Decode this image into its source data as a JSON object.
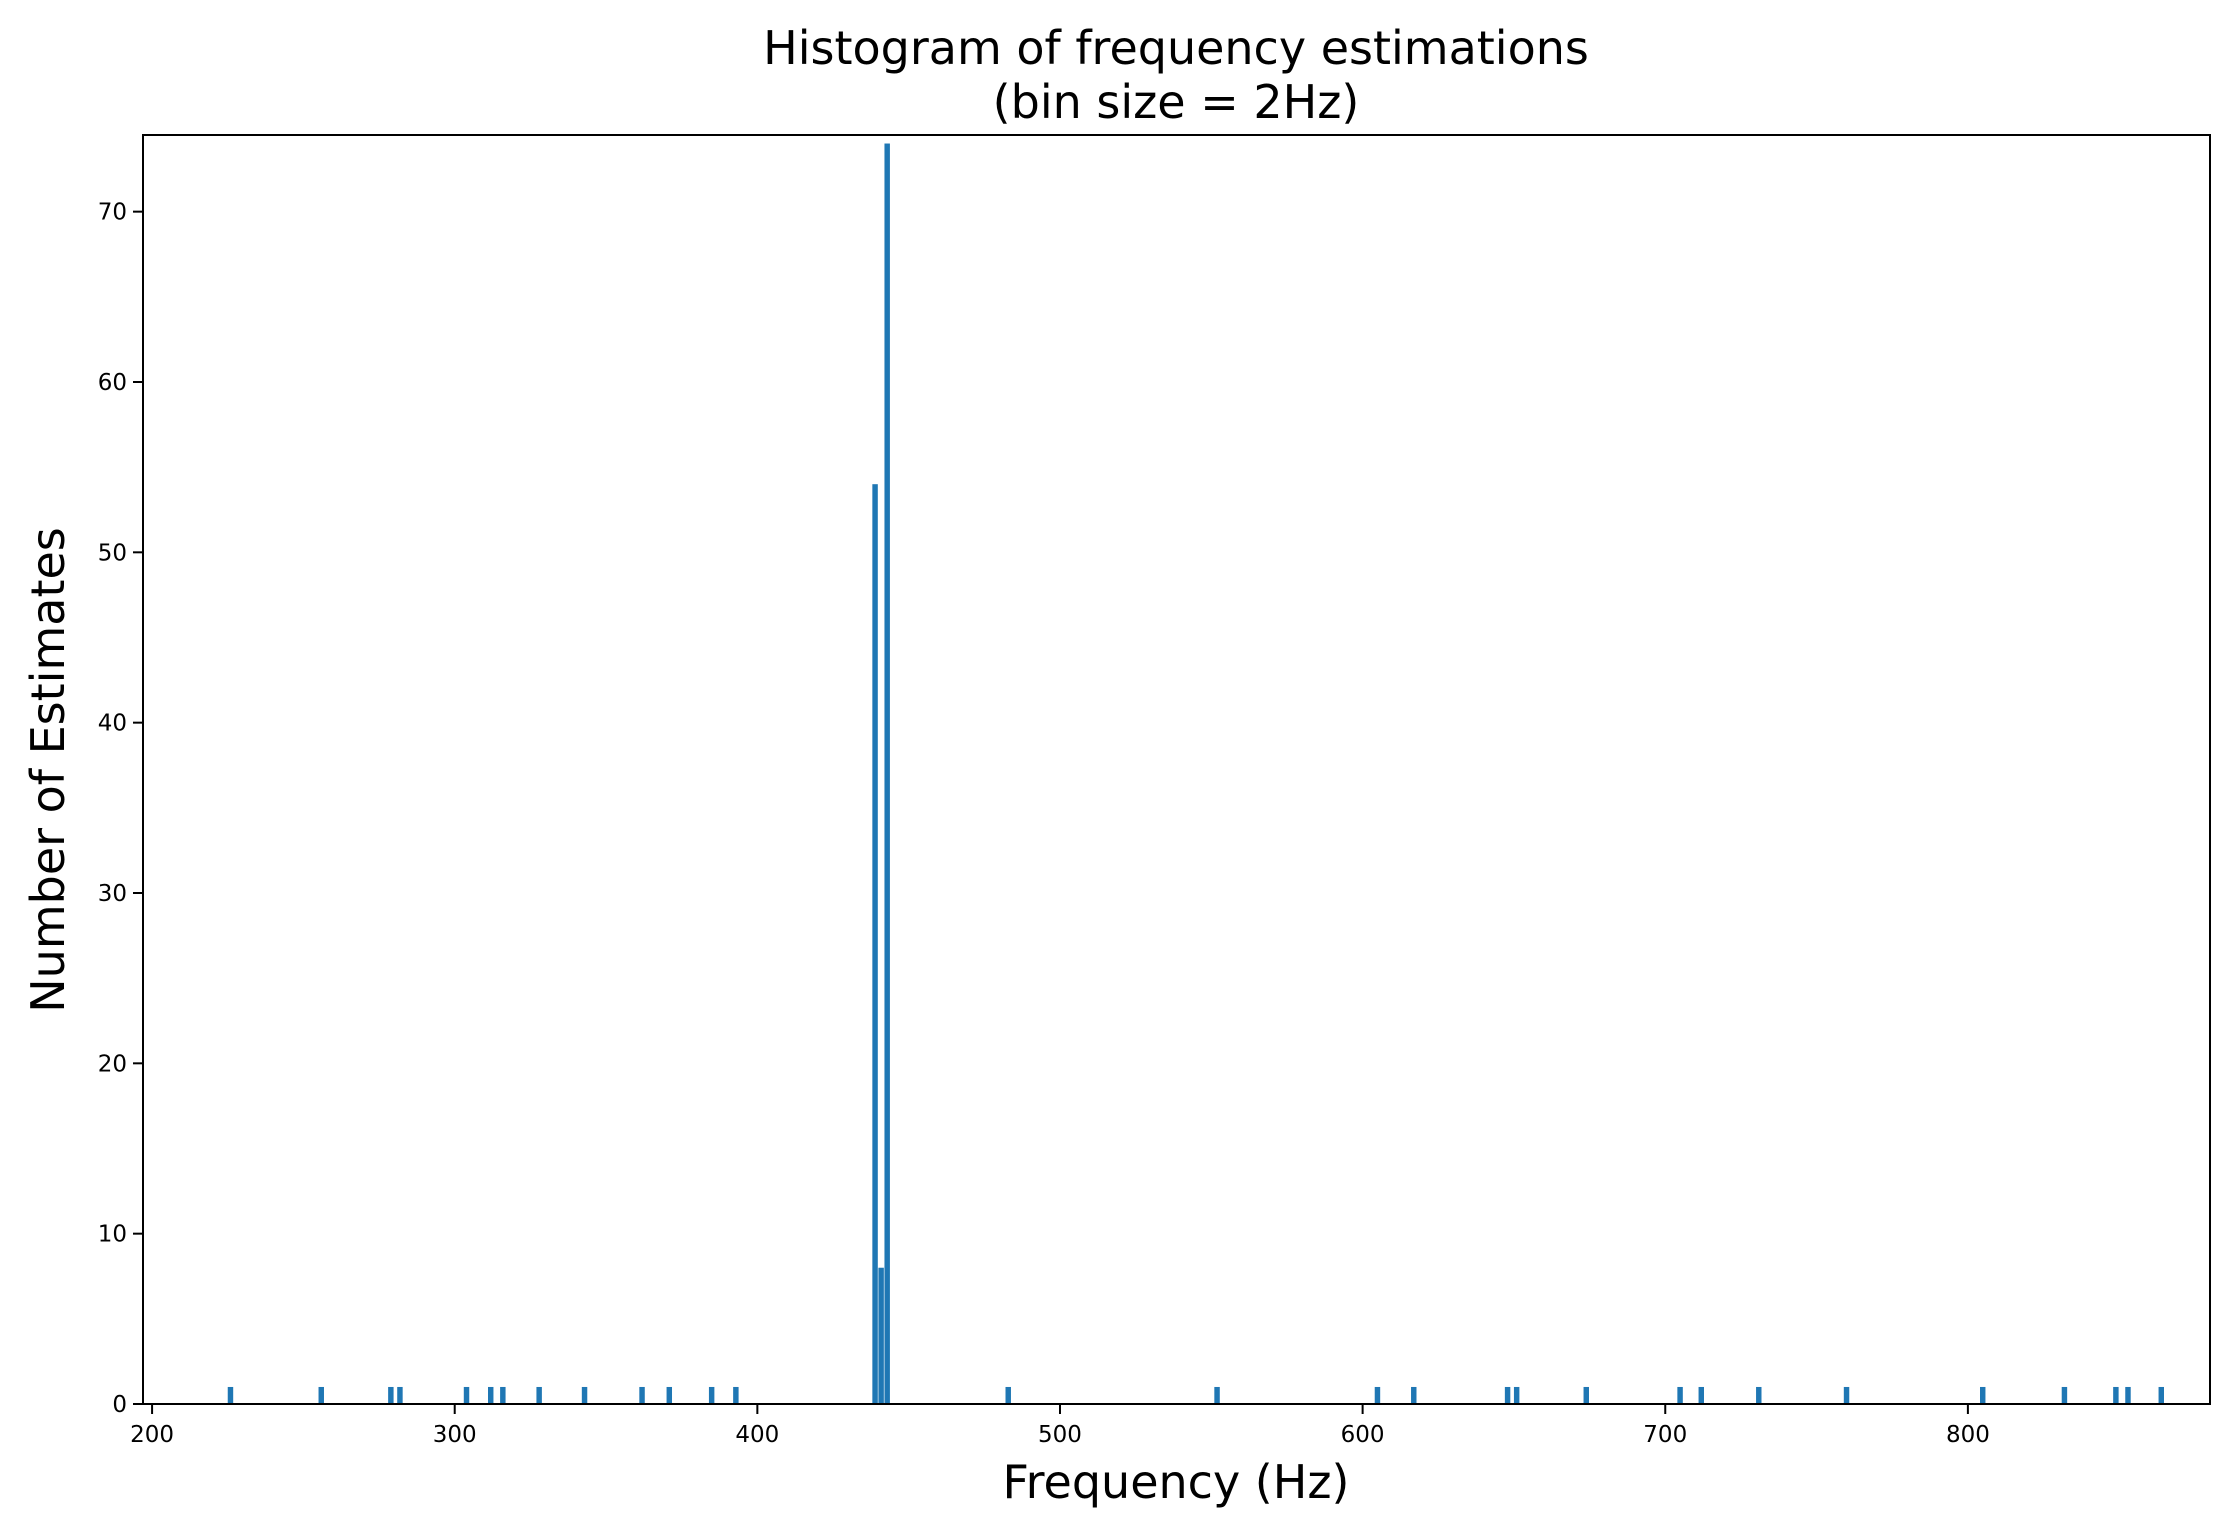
{
  "chart_data": {
    "type": "bar",
    "title": "Histogram of frequency estimations",
    "subtitle": "(bin size = 2Hz)",
    "xlabel": "Frequency (Hz)",
    "ylabel": "Number of Estimates",
    "xlim": [
      197,
      880
    ],
    "ylim": [
      0,
      74.5
    ],
    "bin_size": 2,
    "xticks": [
      200,
      300,
      400,
      500,
      600,
      700,
      800
    ],
    "yticks": [
      0,
      10,
      20,
      30,
      40,
      50,
      60,
      70
    ],
    "bar_color": "#1f77b4",
    "bins": [
      {
        "x": 225,
        "count": 1
      },
      {
        "x": 255,
        "count": 1
      },
      {
        "x": 278,
        "count": 1
      },
      {
        "x": 281,
        "count": 1
      },
      {
        "x": 303,
        "count": 1
      },
      {
        "x": 311,
        "count": 1
      },
      {
        "x": 315,
        "count": 1
      },
      {
        "x": 327,
        "count": 1
      },
      {
        "x": 342,
        "count": 1
      },
      {
        "x": 361,
        "count": 1
      },
      {
        "x": 370,
        "count": 1
      },
      {
        "x": 384,
        "count": 1
      },
      {
        "x": 392,
        "count": 1
      },
      {
        "x": 438,
        "count": 54
      },
      {
        "x": 440,
        "count": 8
      },
      {
        "x": 442,
        "count": 74
      },
      {
        "x": 482,
        "count": 1
      },
      {
        "x": 551,
        "count": 1
      },
      {
        "x": 604,
        "count": 1
      },
      {
        "x": 616,
        "count": 1
      },
      {
        "x": 647,
        "count": 1
      },
      {
        "x": 650,
        "count": 1
      },
      {
        "x": 673,
        "count": 1
      },
      {
        "x": 704,
        "count": 1
      },
      {
        "x": 711,
        "count": 1
      },
      {
        "x": 730,
        "count": 1
      },
      {
        "x": 759,
        "count": 1
      },
      {
        "x": 804,
        "count": 1
      },
      {
        "x": 831,
        "count": 1
      },
      {
        "x": 848,
        "count": 1
      },
      {
        "x": 852,
        "count": 1
      },
      {
        "x": 863,
        "count": 1
      }
    ]
  }
}
